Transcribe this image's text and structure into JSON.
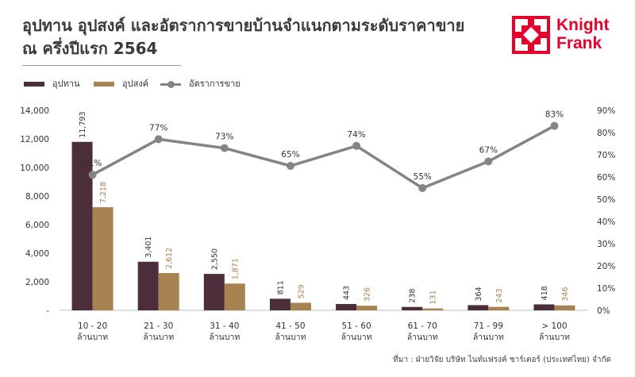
{
  "title_lines": [
    "อุปทาน อุปสงค์ และอัตราการขายบ้านจำแนกตามระดับราคาขาย",
    "ณ ครึ่งปีแรก 2564"
  ],
  "logo": {
    "line1": "Knight",
    "line2": "Frank",
    "color": "#e4002b"
  },
  "legend": [
    {
      "label": "อุปทาน",
      "color": "#4b2e3a"
    },
    {
      "label": "อุปสงค์",
      "color": "#a88352"
    },
    {
      "label": "อัตราการขาย",
      "color": "#848484"
    }
  ],
  "source": "ที่มา : ฝ่ายวิจัย บริษัท ไนท์แฟรงค์ ชาร์เตอร์ (ประเทศไทย) จำกัด",
  "chart_data": {
    "type": "bar",
    "categories": [
      [
        "10 - 20",
        "ล้านบาท"
      ],
      [
        "21 - 30",
        "ล้านบาท"
      ],
      [
        "31 - 40",
        "ล้านบาท"
      ],
      [
        "41 - 50",
        "ล้านบาท"
      ],
      [
        "51 - 60",
        "ล้านบาท"
      ],
      [
        "61 - 70",
        "ล้านบาท"
      ],
      [
        "71 - 99",
        "ล้านบาท"
      ],
      [
        "> 100",
        "ล้านบาท"
      ]
    ],
    "series": [
      {
        "name": "อุปทาน",
        "type": "bar",
        "axis": "left",
        "color": "#4b2e3a",
        "values": [
          11793,
          3401,
          2550,
          811,
          443,
          238,
          364,
          418
        ],
        "labels": [
          "11,793",
          "3,401",
          "2,550",
          "811",
          "443",
          "238",
          "364",
          "418"
        ]
      },
      {
        "name": "อุปสงค์",
        "type": "bar",
        "axis": "left",
        "color": "#a88352",
        "values": [
          7218,
          2612,
          1871,
          529,
          326,
          131,
          243,
          346
        ],
        "labels": [
          "7,218",
          "2,612",
          "1,871",
          "529",
          "326",
          "131",
          "243",
          "346"
        ]
      },
      {
        "name": "อัตราการขาย",
        "type": "line",
        "axis": "right",
        "color": "#848484",
        "values": [
          61,
          77,
          73,
          65,
          74,
          55,
          67,
          83
        ],
        "labels": [
          "61%",
          "77%",
          "73%",
          "65%",
          "74%",
          "55%",
          "67%",
          "83%"
        ]
      }
    ],
    "y_left": {
      "ylim": [
        0,
        14000
      ],
      "ticks": [
        "-",
        "2,000",
        "4,000",
        "6,000",
        "8,000",
        "10,000",
        "12,000",
        "14,000"
      ]
    },
    "y_right": {
      "ylim": [
        0,
        90
      ],
      "ticks": [
        "0%",
        "10%",
        "20%",
        "30%",
        "40%",
        "50%",
        "60%",
        "70%",
        "80%",
        "90%"
      ]
    },
    "grid": false,
    "legend_position": "top-left"
  }
}
